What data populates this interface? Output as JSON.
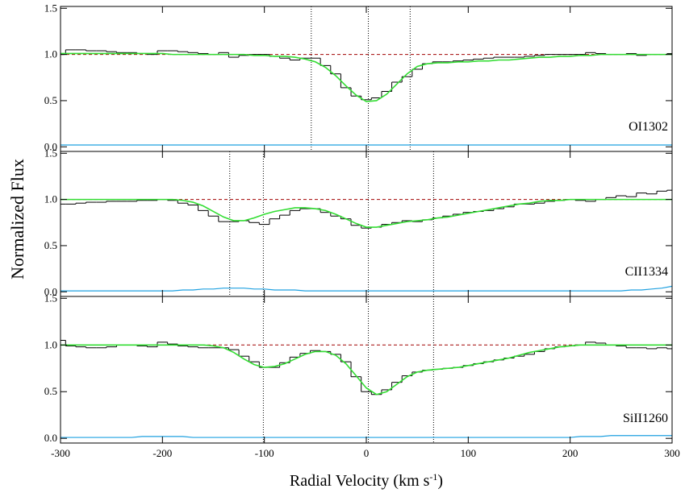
{
  "y_label": "Normalized Flux",
  "x_label": {
    "text": "Radial Velocity (km s",
    "superscript": "-1",
    "close": ")"
  },
  "chart_data": [
    {
      "type": "line",
      "line_label": "OI1302",
      "xlim": [
        -300,
        300
      ],
      "ylim": [
        -0.05,
        1.52
      ],
      "xticks": [
        -300,
        -200,
        -100,
        0,
        100,
        200,
        300
      ],
      "yticks": [
        {
          "value": 0,
          "label": "0.0"
        },
        0.5,
        {
          "value": 1,
          "label": "1.0"
        },
        1.5
      ],
      "reference_line": 1,
      "components": [
        -54,
        2,
        43
      ],
      "x": [
        -300,
        -290,
        -280,
        -270,
        -260,
        -250,
        -240,
        -230,
        -220,
        -210,
        -200,
        -190,
        -180,
        -170,
        -160,
        -150,
        -140,
        -130,
        -120,
        -110,
        -100,
        -90,
        -80,
        -70,
        -60,
        -50,
        -40,
        -30,
        -20,
        -10,
        0,
        10,
        20,
        30,
        40,
        50,
        60,
        70,
        80,
        90,
        100,
        110,
        120,
        130,
        140,
        150,
        160,
        170,
        180,
        190,
        200,
        210,
        220,
        230,
        240,
        250,
        260,
        270,
        280,
        290,
        300
      ],
      "series": [
        {
          "name": "data",
          "style": "step",
          "color": "#000000",
          "values": [
            1.0,
            1.05,
            1.05,
            1.04,
            1.04,
            1.03,
            1.02,
            1.02,
            1.01,
            1.0,
            1.04,
            1.04,
            1.03,
            1.02,
            1.01,
            1.0,
            1.02,
            0.97,
            0.99,
            1.0,
            1.0,
            0.98,
            0.96,
            0.94,
            0.96,
            0.96,
            0.88,
            0.79,
            0.64,
            0.55,
            0.51,
            0.53,
            0.6,
            0.7,
            0.76,
            0.84,
            0.9,
            0.92,
            0.92,
            0.93,
            0.94,
            0.95,
            0.96,
            0.97,
            0.97,
            0.97,
            0.98,
            0.99,
            1.0,
            1.0,
            1.0,
            1.0,
            1.02,
            1.01,
            1.0,
            1.0,
            1.01,
            0.99,
            1.0,
            1.0,
            1.01
          ]
        },
        {
          "name": "model",
          "style": "line",
          "color": "#33dd33",
          "values": [
            1.01,
            1.01,
            1.01,
            1.01,
            1.01,
            1.01,
            1.01,
            1.01,
            1.01,
            1.01,
            1.01,
            1.0,
            1.0,
            1.0,
            1.0,
            1.0,
            1.0,
            1.0,
            1.0,
            0.99,
            0.99,
            0.98,
            0.98,
            0.97,
            0.95,
            0.92,
            0.86,
            0.77,
            0.66,
            0.56,
            0.49,
            0.5,
            0.57,
            0.68,
            0.79,
            0.87,
            0.9,
            0.91,
            0.91,
            0.92,
            0.92,
            0.93,
            0.93,
            0.94,
            0.94,
            0.95,
            0.96,
            0.97,
            0.97,
            0.98,
            0.98,
            0.99,
            0.99,
            1.0,
            1.0,
            1.0,
            1.0,
            1.0,
            1.0,
            1.0,
            1.0
          ]
        },
        {
          "name": "error",
          "style": "line",
          "color": "#1ea0e0",
          "values": [
            0.02,
            0.02,
            0.02,
            0.02,
            0.02,
            0.02,
            0.02,
            0.02,
            0.02,
            0.02,
            0.02,
            0.02,
            0.02,
            0.02,
            0.02,
            0.02,
            0.02,
            0.02,
            0.02,
            0.02,
            0.02,
            0.02,
            0.02,
            0.02,
            0.02,
            0.02,
            0.02,
            0.02,
            0.02,
            0.02,
            0.02,
            0.02,
            0.02,
            0.02,
            0.02,
            0.02,
            0.02,
            0.02,
            0.02,
            0.02,
            0.02,
            0.02,
            0.02,
            0.02,
            0.02,
            0.02,
            0.02,
            0.02,
            0.02,
            0.02,
            0.02,
            0.02,
            0.02,
            0.02,
            0.02,
            0.02,
            0.02,
            0.02,
            0.02,
            0.02,
            0.02
          ]
        }
      ]
    },
    {
      "type": "line",
      "line_label": "CII1334",
      "xlim": [
        -300,
        300
      ],
      "ylim": [
        -0.05,
        1.52
      ],
      "xticks": [
        -300,
        -200,
        -100,
        0,
        100,
        200,
        300
      ],
      "yticks": [
        {
          "value": 0,
          "label": "0.0"
        },
        0.5,
        {
          "value": 1,
          "label": "1.0"
        },
        1.5
      ],
      "reference_line": 1,
      "components": [
        -134,
        -101,
        2,
        66
      ],
      "x": [
        -300,
        -290,
        -280,
        -270,
        -260,
        -250,
        -240,
        -230,
        -220,
        -210,
        -200,
        -190,
        -180,
        -170,
        -160,
        -150,
        -140,
        -130,
        -120,
        -110,
        -100,
        -90,
        -80,
        -70,
        -60,
        -50,
        -40,
        -30,
        -20,
        -10,
        0,
        10,
        20,
        30,
        40,
        50,
        60,
        70,
        80,
        90,
        100,
        110,
        120,
        130,
        140,
        150,
        160,
        170,
        180,
        190,
        200,
        210,
        220,
        230,
        240,
        250,
        260,
        270,
        280,
        290,
        300
      ],
      "series": [
        {
          "name": "data",
          "style": "step",
          "color": "#000000",
          "values": [
            0.95,
            0.95,
            0.96,
            0.97,
            0.97,
            0.98,
            0.98,
            0.98,
            0.99,
            0.99,
            1.0,
            0.99,
            0.96,
            0.94,
            0.88,
            0.82,
            0.76,
            0.76,
            0.77,
            0.75,
            0.73,
            0.79,
            0.83,
            0.88,
            0.9,
            0.9,
            0.86,
            0.82,
            0.79,
            0.72,
            0.69,
            0.7,
            0.73,
            0.75,
            0.77,
            0.76,
            0.78,
            0.8,
            0.82,
            0.84,
            0.86,
            0.87,
            0.88,
            0.9,
            0.92,
            0.95,
            0.95,
            0.96,
            0.98,
            0.99,
            1.0,
            0.99,
            0.98,
            1.0,
            1.02,
            1.04,
            1.03,
            1.07,
            1.06,
            1.09,
            1.1
          ]
        },
        {
          "name": "model",
          "style": "line",
          "color": "#33dd33",
          "values": [
            1.0,
            1.0,
            1.0,
            1.0,
            1.0,
            1.0,
            1.0,
            1.0,
            1.0,
            1.0,
            1.0,
            1.0,
            0.99,
            0.97,
            0.93,
            0.87,
            0.81,
            0.77,
            0.77,
            0.8,
            0.84,
            0.87,
            0.89,
            0.91,
            0.91,
            0.9,
            0.88,
            0.84,
            0.79,
            0.74,
            0.7,
            0.7,
            0.72,
            0.74,
            0.76,
            0.77,
            0.78,
            0.8,
            0.81,
            0.83,
            0.85,
            0.87,
            0.89,
            0.91,
            0.93,
            0.95,
            0.96,
            0.98,
            0.99,
            0.99,
            1.0,
            1.0,
            1.0,
            1.0,
            1.0,
            1.0,
            1.0,
            1.0,
            1.0,
            1.0,
            1.0
          ]
        },
        {
          "name": "error",
          "style": "line",
          "color": "#1ea0e0",
          "values": [
            0.01,
            0.01,
            0.01,
            0.01,
            0.01,
            0.01,
            0.01,
            0.01,
            0.01,
            0.01,
            0.01,
            0.01,
            0.02,
            0.02,
            0.03,
            0.03,
            0.04,
            0.04,
            0.04,
            0.03,
            0.03,
            0.02,
            0.02,
            0.02,
            0.01,
            0.01,
            0.01,
            0.01,
            0.01,
            0.01,
            0.01,
            0.01,
            0.01,
            0.01,
            0.01,
            0.01,
            0.01,
            0.01,
            0.01,
            0.01,
            0.01,
            0.01,
            0.01,
            0.01,
            0.01,
            0.01,
            0.01,
            0.01,
            0.01,
            0.01,
            0.01,
            0.01,
            0.01,
            0.01,
            0.01,
            0.01,
            0.02,
            0.02,
            0.03,
            0.04,
            0.06
          ]
        }
      ]
    },
    {
      "type": "line",
      "line_label": "SiII1260",
      "xlim": [
        -300,
        300
      ],
      "ylim": [
        -0.05,
        1.52
      ],
      "xticks": [
        -300,
        -200,
        -100,
        0,
        100,
        200,
        300
      ],
      "yticks": [
        {
          "value": 0,
          "label": "0.0"
        },
        0.5,
        {
          "value": 1,
          "label": "1.0"
        },
        1.5
      ],
      "reference_line": 1,
      "components": [
        -101,
        2,
        66
      ],
      "show_x_tick_labels": true,
      "x": [
        -300,
        -290,
        -280,
        -270,
        -260,
        -250,
        -240,
        -230,
        -220,
        -210,
        -200,
        -190,
        -180,
        -170,
        -160,
        -150,
        -140,
        -130,
        -120,
        -110,
        -100,
        -90,
        -80,
        -70,
        -60,
        -50,
        -40,
        -30,
        -20,
        -10,
        0,
        10,
        20,
        30,
        40,
        50,
        60,
        70,
        80,
        90,
        100,
        110,
        120,
        130,
        140,
        150,
        160,
        170,
        180,
        190,
        200,
        210,
        220,
        230,
        240,
        250,
        260,
        270,
        280,
        290,
        300
      ],
      "series": [
        {
          "name": "data",
          "style": "step",
          "color": "#000000",
          "values": [
            1.05,
            0.99,
            0.98,
            0.97,
            0.97,
            0.98,
            1.0,
            1.0,
            0.99,
            0.98,
            1.03,
            1.01,
            0.99,
            0.98,
            0.97,
            0.97,
            0.97,
            0.95,
            0.88,
            0.82,
            0.76,
            0.76,
            0.81,
            0.87,
            0.91,
            0.94,
            0.93,
            0.9,
            0.82,
            0.66,
            0.5,
            0.47,
            0.52,
            0.6,
            0.67,
            0.71,
            0.73,
            0.74,
            0.75,
            0.76,
            0.78,
            0.8,
            0.82,
            0.84,
            0.86,
            0.88,
            0.9,
            0.93,
            0.96,
            0.98,
            0.99,
            1.0,
            1.03,
            1.02,
            1.0,
            0.99,
            0.97,
            0.97,
            0.96,
            0.97,
            0.96
          ]
        },
        {
          "name": "model",
          "style": "line",
          "color": "#33dd33",
          "values": [
            1.0,
            1.0,
            1.0,
            1.0,
            1.0,
            1.0,
            1.0,
            1.0,
            1.0,
            1.0,
            1.0,
            1.0,
            1.0,
            1.0,
            1.0,
            0.99,
            0.97,
            0.92,
            0.85,
            0.79,
            0.76,
            0.77,
            0.8,
            0.85,
            0.9,
            0.93,
            0.93,
            0.89,
            0.8,
            0.67,
            0.54,
            0.47,
            0.5,
            0.58,
            0.66,
            0.71,
            0.73,
            0.74,
            0.75,
            0.76,
            0.78,
            0.8,
            0.82,
            0.84,
            0.86,
            0.89,
            0.92,
            0.94,
            0.96,
            0.98,
            0.99,
            1.0,
            1.0,
            1.0,
            1.0,
            1.0,
            1.0,
            1.0,
            1.0,
            1.0,
            1.0
          ]
        },
        {
          "name": "error",
          "style": "line",
          "color": "#1ea0e0",
          "values": [
            0.01,
            0.01,
            0.01,
            0.01,
            0.01,
            0.01,
            0.01,
            0.01,
            0.02,
            0.02,
            0.02,
            0.02,
            0.02,
            0.01,
            0.01,
            0.01,
            0.01,
            0.01,
            0.01,
            0.01,
            0.01,
            0.01,
            0.01,
            0.01,
            0.01,
            0.01,
            0.01,
            0.01,
            0.01,
            0.01,
            0.01,
            0.01,
            0.01,
            0.01,
            0.01,
            0.01,
            0.01,
            0.01,
            0.01,
            0.01,
            0.01,
            0.01,
            0.01,
            0.01,
            0.01,
            0.01,
            0.01,
            0.01,
            0.01,
            0.01,
            0.01,
            0.02,
            0.02,
            0.02,
            0.03,
            0.03,
            0.03,
            0.03,
            0.03,
            0.03,
            0.03
          ]
        }
      ]
    }
  ]
}
